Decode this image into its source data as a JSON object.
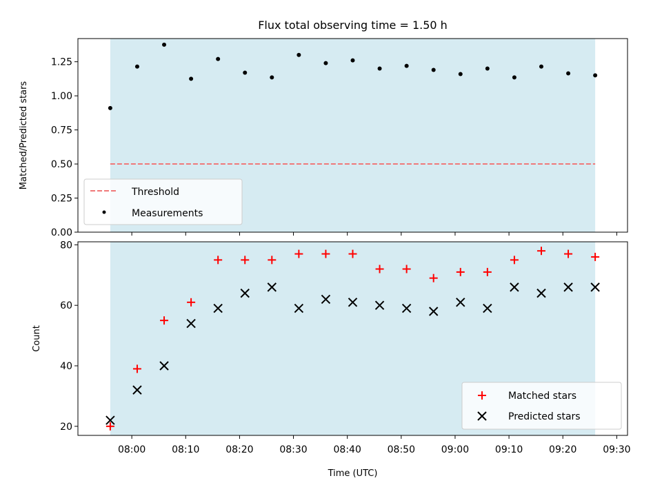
{
  "chart_data": [
    {
      "type": "scatter",
      "title": "Flux total observing time = 1.50 h",
      "xlabel": "",
      "ylabel": "Matched/Predicted stars",
      "ylim": [
        0,
        1.42
      ],
      "yticks": [
        0.0,
        0.25,
        0.5,
        0.75,
        1.0,
        1.25
      ],
      "ytick_labels": [
        "0.00",
        "0.25",
        "0.50",
        "0.75",
        "1.00",
        "1.25"
      ],
      "observing_span": [
        "07:56",
        "09:26"
      ],
      "threshold": {
        "name": "Threshold",
        "value": 0.5,
        "color": "#f07878"
      },
      "series": [
        {
          "name": "Measurements",
          "color": "#000000",
          "x": [
            "07:56",
            "08:01",
            "08:06",
            "08:11",
            "08:16",
            "08:21",
            "08:26",
            "08:31",
            "08:36",
            "08:41",
            "08:46",
            "08:51",
            "08:56",
            "09:01",
            "09:06",
            "09:11",
            "09:16",
            "09:21",
            "09:26"
          ],
          "values": [
            0.91,
            1.215,
            1.375,
            1.125,
            1.27,
            1.17,
            1.135,
            1.3,
            1.24,
            1.26,
            1.2,
            1.22,
            1.19,
            1.16,
            1.2,
            1.135,
            1.215,
            1.165,
            1.15
          ]
        }
      ],
      "legend": {
        "position": "lower-left",
        "entries": [
          "Threshold",
          "Measurements"
        ]
      },
      "shade_color": "#add8e6"
    },
    {
      "type": "scatter",
      "title": "",
      "xlabel": "Time (UTC)",
      "ylabel": "Count",
      "ylim": [
        17,
        81
      ],
      "yticks": [
        20,
        40,
        60,
        80
      ],
      "ytick_labels": [
        "20",
        "40",
        "60",
        "80"
      ],
      "xticks": [
        "08:00",
        "08:10",
        "08:20",
        "08:30",
        "08:40",
        "08:50",
        "09:00",
        "09:10",
        "09:20",
        "09:30"
      ],
      "observing_span": [
        "07:56",
        "09:26"
      ],
      "series": [
        {
          "name": "Matched stars",
          "marker": "+",
          "color": "#ff0000",
          "x": [
            "07:56",
            "08:01",
            "08:06",
            "08:11",
            "08:16",
            "08:21",
            "08:26",
            "08:31",
            "08:36",
            "08:41",
            "08:46",
            "08:51",
            "08:56",
            "09:01",
            "09:06",
            "09:11",
            "09:16",
            "09:21",
            "09:26"
          ],
          "values": [
            20,
            39,
            55,
            61,
            75,
            75,
            75,
            77,
            77,
            77,
            72,
            72,
            69,
            71,
            71,
            75,
            78,
            77,
            76
          ]
        },
        {
          "name": "Predicted stars",
          "marker": "x",
          "color": "#000000",
          "x": [
            "07:56",
            "08:01",
            "08:06",
            "08:11",
            "08:16",
            "08:21",
            "08:26",
            "08:31",
            "08:36",
            "08:41",
            "08:46",
            "08:51",
            "08:56",
            "09:01",
            "09:06",
            "09:11",
            "09:16",
            "09:21",
            "09:26"
          ],
          "values": [
            22,
            32,
            40,
            54,
            59,
            64,
            66,
            59,
            62,
            61,
            60,
            59,
            58,
            61,
            59,
            66,
            64,
            66,
            66
          ]
        }
      ],
      "legend": {
        "position": "lower-right",
        "entries": [
          "Matched stars",
          "Predicted stars"
        ]
      },
      "shade_color": "#add8e6"
    }
  ]
}
